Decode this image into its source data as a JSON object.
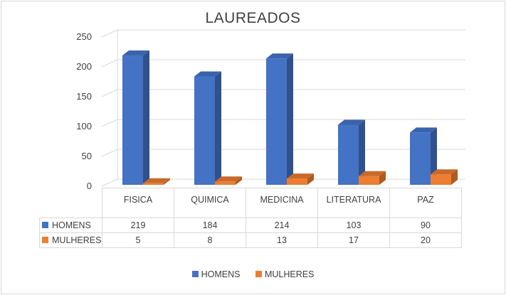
{
  "chart_data": {
    "type": "bar",
    "title": "LAUREADOS",
    "categories": [
      "FISICA",
      "QUIMICA",
      "MEDICINA",
      "LITERATURA",
      "PAZ"
    ],
    "series": [
      {
        "name": "HOMENS",
        "values": [
          219,
          184,
          214,
          103,
          90
        ],
        "color": "#4472c4"
      },
      {
        "name": "MULHERES",
        "values": [
          5,
          8,
          13,
          17,
          20
        ],
        "color": "#ed7d31"
      }
    ],
    "ylim": [
      0,
      250
    ],
    "yticks": [
      "0",
      "50",
      "100",
      "150",
      "200",
      "250"
    ],
    "grid": true,
    "legend": "bottom",
    "data_table": true
  }
}
